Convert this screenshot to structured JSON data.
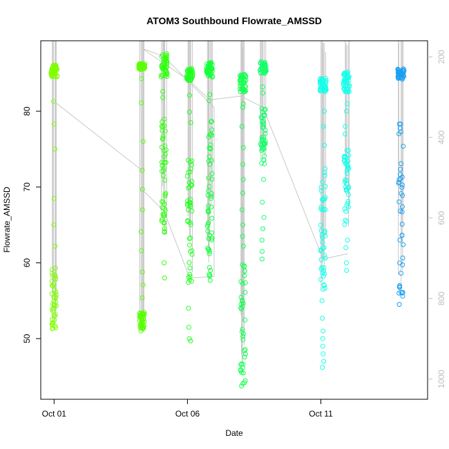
{
  "chart_data": {
    "type": "scatter",
    "title": "ATOM3 Southbound Flowrate_AMSSD",
    "xlabel": "Date",
    "ylabel": "Flowrate_AMSSD",
    "x_axis": {
      "type": "date",
      "range": [
        "2013-09-30T12:00",
        "2013-10-15T00:00"
      ],
      "ticks": [
        {
          "date": "2013-10-01",
          "label": "Oct 01"
        },
        {
          "date": "2013-10-06",
          "label": "Oct 06"
        },
        {
          "date": "2013-10-11",
          "label": "Oct 11"
        }
      ]
    },
    "y_axis": {
      "range": [
        42.0,
        89.3
      ],
      "ticks": [
        50,
        60,
        70,
        80
      ]
    },
    "y2_axis": {
      "range": [
        1050,
        160
      ],
      "reversed": true,
      "ticks": [
        200,
        400,
        600,
        800,
        1000
      ],
      "color": "#bdbdbd"
    },
    "gray_series_color": "#c8c8c8",
    "grid": false,
    "clusters": [
      {
        "date": "2013-10-01T00:00",
        "color": "#7fff00",
        "high": [
          84.5,
          86.1
        ],
        "scatter": [
          51.2,
          60.0
        ],
        "extra": [
          81.3,
          78.3,
          75.0,
          68.5,
          65.0,
          62.2
        ]
      },
      {
        "date": "2013-10-04T07:00",
        "color": "#5aff05",
        "high": [
          85.5,
          86.3
        ],
        "scatter": [
          51.0,
          53.5
        ],
        "extra": [
          84.3,
          81.1,
          76.0,
          72.2,
          69.7,
          67.0,
          64.1,
          61.6,
          58.8,
          57.1,
          55.4
        ]
      },
      {
        "date": "2013-10-05T03:00",
        "color": "#33ff10",
        "high": [
          84.5,
          87.7
        ],
        "scatter": [
          63.5,
          80.0
        ],
        "extra": [
          82.6,
          81.8,
          78.0,
          76.4,
          74.0,
          72.5,
          70.9,
          69.0,
          60.0,
          58.0
        ]
      },
      {
        "date": "2013-10-06T02:00",
        "color": "#22ff22",
        "high": [
          84.0,
          85.7
        ],
        "scatter": [
          56.8,
          74.0
        ],
        "extra": [
          82.1,
          79.9,
          78.5,
          72.0,
          70.0,
          65.3,
          54.0,
          51.5,
          50.0,
          49.7
        ]
      },
      {
        "date": "2013-10-06T20:00",
        "color": "#16ff3a",
        "high": [
          84.5,
          86.5
        ],
        "scatter": [
          56.5,
          80.0
        ],
        "extra": [
          82.2,
          81.4,
          78.6,
          77.0,
          75.1,
          73.0,
          71.2,
          69.5,
          67.5,
          65.3,
          63.2,
          61.5,
          59.0
        ]
      },
      {
        "date": "2013-10-08T02:00",
        "color": "#16ff50",
        "high": [
          82.5,
          85.0
        ],
        "scatter": [
          43.5,
          60.0
        ],
        "extra": [
          81.0,
          80.5,
          78.0,
          75.2,
          73.0,
          71.0,
          69.2,
          67.0,
          65.0,
          63.5,
          62.2
        ]
      },
      {
        "date": "2013-10-08T20:00",
        "color": "#16ff6a",
        "high": [
          85.0,
          86.6
        ],
        "scatter": [
          73.0,
          81.0
        ],
        "extra": [
          83.2,
          82.4,
          71.0,
          68.0,
          66.0,
          64.5,
          63.0,
          61.5,
          60.5
        ]
      },
      {
        "date": "2013-10-11T02:00",
        "color": "#16ffe8",
        "high": [
          82.5,
          84.4
        ],
        "scatter": [
          56.0,
          73.0
        ],
        "extra": [
          80.0,
          78.0,
          75.5,
          67.0,
          64.0,
          62.0,
          61.0,
          55.0,
          52.7,
          51.0,
          50.0,
          49.0,
          48.0,
          47.0,
          46.2
        ]
      },
      {
        "date": "2013-10-11T23:00",
        "color": "#16ffea",
        "high": [
          82.5,
          85.2
        ],
        "scatter": [
          64.5,
          75.5
        ],
        "extra": [
          81.0,
          80.0,
          78.0,
          77.0,
          63.0,
          62.0,
          60.0,
          59.0
        ]
      },
      {
        "date": "2013-10-14T00:00",
        "color": "#1ba0f0",
        "high": [
          84.2,
          85.6
        ],
        "scatter": [
          53.5,
          82.0
        ],
        "extra": []
      }
    ],
    "gray_connector_points": [
      [
        "2013-10-01T00:00",
        81.3
      ],
      [
        "2013-10-04T07:00",
        72.2
      ],
      [
        "2013-10-04T07:00",
        69.7
      ],
      [
        "2013-10-05T03:00",
        66.8
      ],
      [
        "2013-10-06T02:00",
        58.0
      ],
      [
        "2013-10-07T00:00",
        58.2
      ],
      [
        "2013-10-07T00:00",
        80.5
      ],
      [
        "2013-10-05T03:00",
        87.2
      ],
      [
        "2013-10-04T07:00",
        88.3
      ],
      [
        "2013-10-06T02:00",
        84.0
      ],
      [
        "2013-10-06T20:00",
        81.5
      ],
      [
        "2013-10-08T00:00",
        82.0
      ],
      [
        "2013-10-08T20:00",
        80.5
      ],
      [
        "2013-10-11T02:00",
        60.5
      ],
      [
        "2013-10-12T00:00",
        61.2
      ]
    ]
  }
}
